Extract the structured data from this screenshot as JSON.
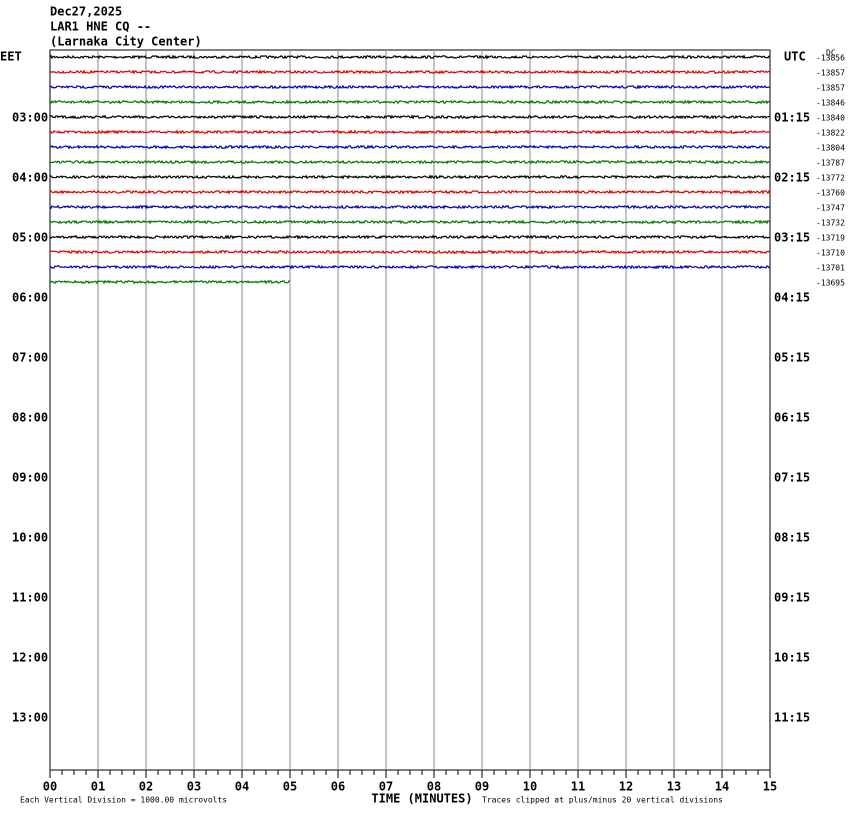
{
  "header": {
    "date": "Dec27,2025",
    "station": "LAR1 HNE CQ --",
    "location": "(Larnaka City Center)"
  },
  "left_axis": {
    "zone": "EET",
    "labels": [
      "03:00",
      "04:00",
      "05:00",
      "06:00",
      "07:00",
      "08:00",
      "09:00",
      "10:00",
      "11:00",
      "12:00",
      "13:00"
    ]
  },
  "right_axis": {
    "zone": "UTC",
    "labels": [
      "01:15",
      "02:15",
      "03:15",
      "04:15",
      "05:15",
      "06:15",
      "07:15",
      "08:15",
      "09:15",
      "10:15",
      "11:15"
    ]
  },
  "dc_header": "DC",
  "trace_dc": [
    "-13856",
    "-13857",
    "-13857",
    "-13846",
    "-13840",
    "-13822",
    "-13804",
    "-13787",
    "-13772",
    "-13760",
    "-13747",
    "-13732",
    "-13719",
    "-13710",
    "-13701",
    "-13695"
  ],
  "x_ticks": [
    "00",
    "01",
    "02",
    "03",
    "04",
    "05",
    "06",
    "07",
    "08",
    "09",
    "10",
    "11",
    "12",
    "13",
    "14",
    "15"
  ],
  "x_axis_label": "TIME (MINUTES)",
  "footer": {
    "left": "Each Vertical Division = 1000.00 microvolts",
    "right": "Traces clipped at plus/minus 20 vertical divisions"
  }
}
